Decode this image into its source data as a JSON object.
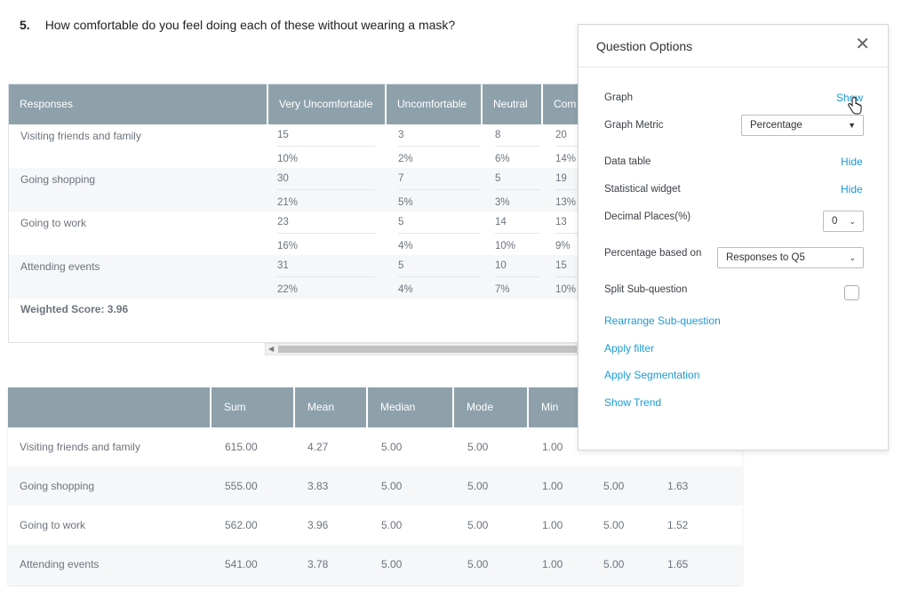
{
  "question": {
    "number": "5.",
    "text": "How comfortable do you feel doing each of these without wearing a mask?"
  },
  "responses_table": {
    "headers": [
      "Responses",
      "Very Uncomfortable",
      "Uncomfortable",
      "Neutral",
      "Com"
    ],
    "rows": [
      {
        "label": "Visiting friends and family",
        "counts": [
          "15",
          "3",
          "8",
          "20"
        ],
        "percents": [
          "10%",
          "2%",
          "6%",
          "14%"
        ]
      },
      {
        "label": "Going shopping",
        "counts": [
          "30",
          "7",
          "5",
          "19"
        ],
        "percents": [
          "21%",
          "5%",
          "3%",
          "13%"
        ]
      },
      {
        "label": "Going to work",
        "counts": [
          "23",
          "5",
          "14",
          "13"
        ],
        "percents": [
          "16%",
          "4%",
          "10%",
          "9%"
        ]
      },
      {
        "label": "Attending events",
        "counts": [
          "31",
          "5",
          "10",
          "15"
        ],
        "percents": [
          "22%",
          "4%",
          "7%",
          "10%"
        ]
      }
    ],
    "weighted_score": "Weighted Score: 3.96"
  },
  "stats_table": {
    "headers": [
      "",
      "Sum",
      "Mean",
      "Median",
      "Mode",
      "Min",
      "",
      ""
    ],
    "rows": [
      {
        "label": "Visiting friends and family",
        "values": [
          "615.00",
          "4.27",
          "5.00",
          "5.00",
          "1.00",
          "",
          ""
        ]
      },
      {
        "label": "Going shopping",
        "values": [
          "555.00",
          "3.83",
          "5.00",
          "5.00",
          "1.00",
          "5.00",
          "1.63"
        ]
      },
      {
        "label": "Going to work",
        "values": [
          "562.00",
          "3.96",
          "5.00",
          "5.00",
          "1.00",
          "5.00",
          "1.52"
        ]
      },
      {
        "label": "Attending events",
        "values": [
          "541.00",
          "3.78",
          "5.00",
          "5.00",
          "1.00",
          "5.00",
          "1.65"
        ]
      }
    ]
  },
  "options_panel": {
    "title": "Question Options",
    "close_icon": "close-icon",
    "graph_label": "Graph",
    "graph_value": "Show",
    "graph_metric_label": "Graph Metric",
    "graph_metric_value": "Percentage",
    "data_table_label": "Data table",
    "data_table_value": "Hide",
    "stat_widget_label": "Statistical widget",
    "stat_widget_value": "Hide",
    "decimal_label": "Decimal Places(%)",
    "decimal_value": "0",
    "pct_based_label": "Percentage based on",
    "pct_based_value": "Responses to Q5",
    "split_label": "Split Sub-question",
    "links": [
      "Rearrange Sub-question",
      "Apply filter",
      "Apply Segmentation",
      "Show Trend"
    ]
  },
  "colors": {
    "header_bg": "#8ea1ab",
    "link": "#1a9ad6",
    "alt_row": "#f5f7f9"
  }
}
